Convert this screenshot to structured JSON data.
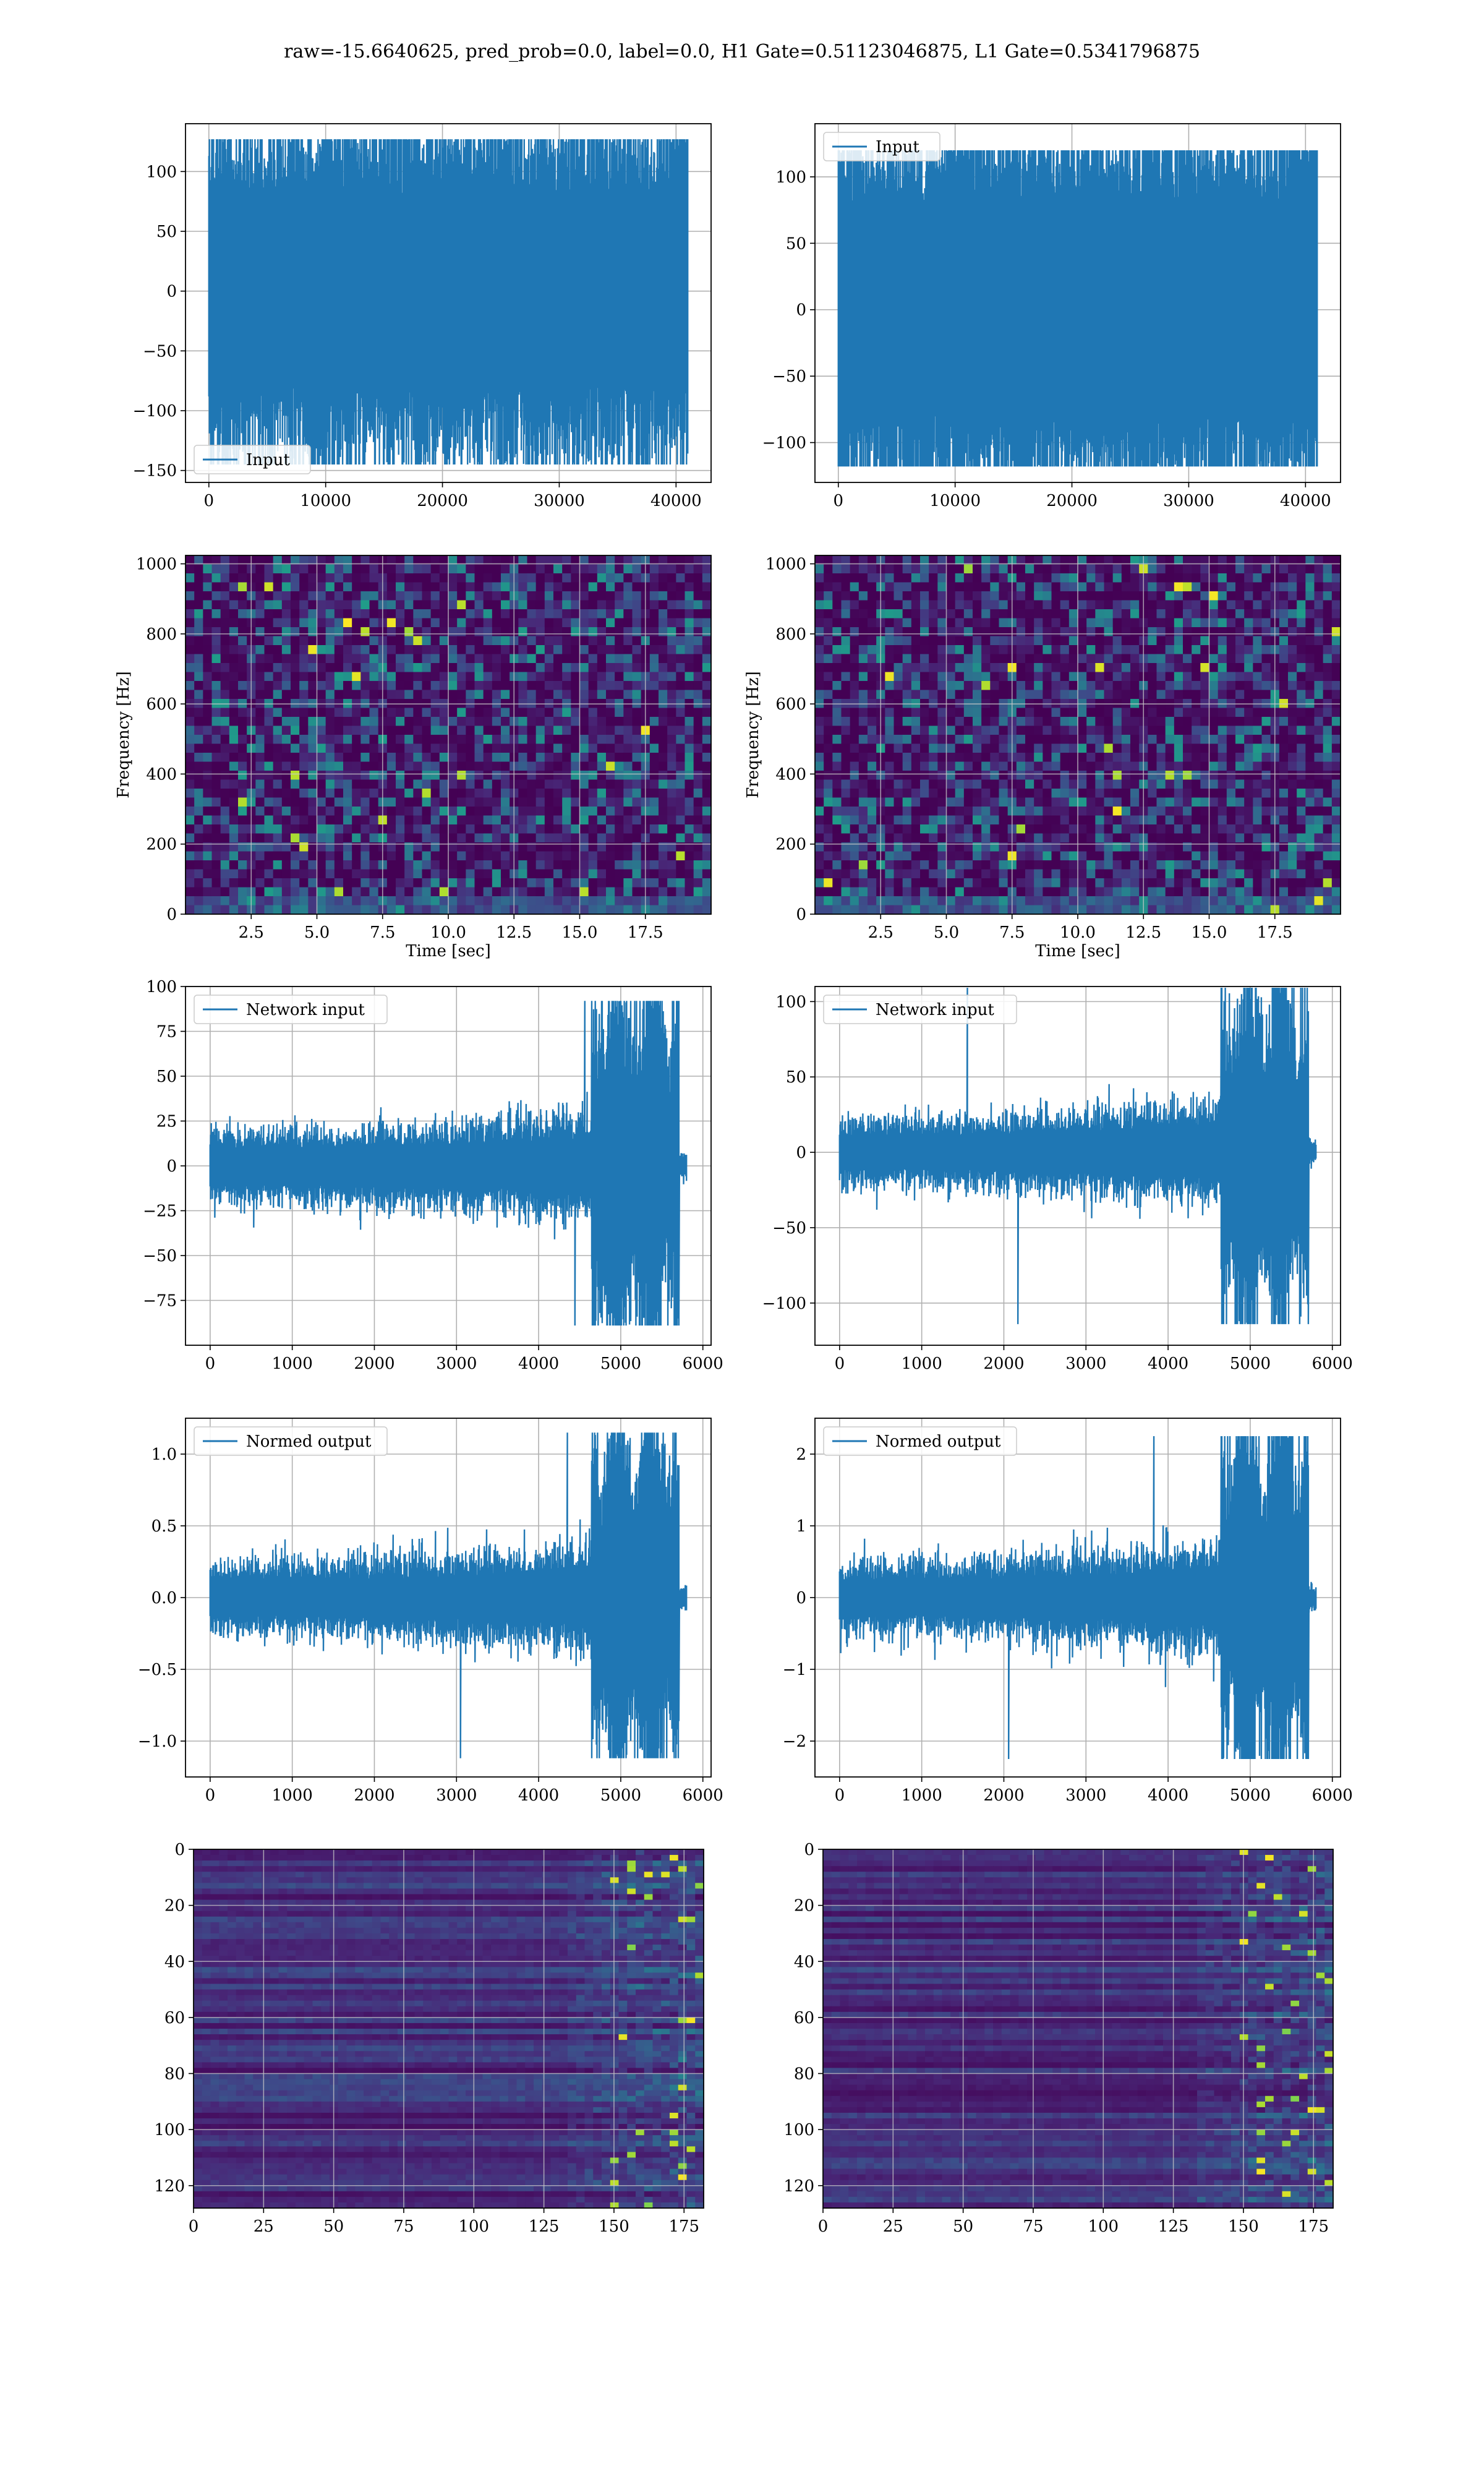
{
  "figure": {
    "suptitle": "raw=-15.6640625, pred_prob=0.0, label=0.0, H1 Gate=0.51123046875, L1 Gate=0.5341796875"
  },
  "colors": {
    "line": "#1f77b4",
    "grid": "#b0b0b0",
    "viridis_dark": "#440154",
    "viridis_mid": "#21918c",
    "viridis_bright": "#fde725"
  },
  "chart_data": [
    {
      "id": "h1-input",
      "type": "line",
      "panel": "row1-left",
      "series": [
        {
          "name": "Input",
          "kind": "noise",
          "n": 41000,
          "amplitude": 30,
          "peak": 127,
          "trough": -145
        }
      ],
      "legend": "lower left",
      "xlim": [
        -2000,
        43000
      ],
      "ylim": [
        -160,
        140
      ],
      "xticks": [
        0,
        10000,
        20000,
        30000,
        40000
      ],
      "yticks": [
        -150,
        -100,
        -50,
        0,
        50,
        100
      ],
      "xlabel": "",
      "ylabel": "",
      "grid": true
    },
    {
      "id": "l1-input",
      "type": "line",
      "panel": "row1-right",
      "series": [
        {
          "name": "Input",
          "kind": "noise",
          "n": 41000,
          "amplitude": 30,
          "peak": 120,
          "trough": -118
        }
      ],
      "legend": "upper left",
      "xlim": [
        -2000,
        43000
      ],
      "ylim": [
        -130,
        140
      ],
      "xticks": [
        0,
        10000,
        20000,
        30000,
        40000
      ],
      "yticks": [
        -100,
        -50,
        0,
        50,
        100
      ],
      "xlabel": "",
      "ylabel": "",
      "grid": true
    },
    {
      "id": "h1-spectrogram",
      "type": "heatmap",
      "panel": "row2-left",
      "colormap": "viridis",
      "xlim": [
        0,
        20
      ],
      "ylim": [
        0,
        1024
      ],
      "xticks": [
        2.5,
        5.0,
        7.5,
        10.0,
        12.5,
        15.0,
        17.5
      ],
      "yticks": [
        0,
        200,
        400,
        600,
        800,
        1000
      ],
      "xlabel": "Time [sec]",
      "ylabel": "Frequency [Hz]",
      "grid": true
    },
    {
      "id": "l1-spectrogram",
      "type": "heatmap",
      "panel": "row2-right",
      "colormap": "viridis",
      "xlim": [
        0,
        20
      ],
      "ylim": [
        0,
        1024
      ],
      "xticks": [
        2.5,
        5.0,
        7.5,
        10.0,
        12.5,
        15.0,
        17.5
      ],
      "yticks": [
        0,
        200,
        400,
        600,
        800,
        1000
      ],
      "xlabel": "Time [sec]",
      "ylabel": "Frequency [Hz]",
      "grid": true
    },
    {
      "id": "h1-network-input",
      "type": "line",
      "panel": "row3-left",
      "series": [
        {
          "name": "Network input",
          "kind": "burst",
          "n": 5800,
          "amplitude": 8,
          "peak": 92,
          "trough": -89
        }
      ],
      "legend": "upper left",
      "xlim": [
        -300,
        6100
      ],
      "ylim": [
        -100,
        100
      ],
      "xticks": [
        0,
        1000,
        2000,
        3000,
        4000,
        5000,
        6000
      ],
      "yticks": [
        -75,
        -50,
        -25,
        0,
        25,
        50,
        75,
        100
      ],
      "xlabel": "",
      "ylabel": "",
      "grid": true
    },
    {
      "id": "l1-network-input",
      "type": "line",
      "panel": "row3-right",
      "series": [
        {
          "name": "Network input",
          "kind": "burst",
          "n": 5800,
          "amplitude": 9,
          "peak": 114,
          "trough": -114
        }
      ],
      "legend": "upper left",
      "xlim": [
        -300,
        6100
      ],
      "ylim": [
        -128,
        110
      ],
      "xticks": [
        0,
        1000,
        2000,
        3000,
        4000,
        5000,
        6000
      ],
      "yticks": [
        -100,
        -50,
        0,
        50,
        100
      ],
      "xlabel": "",
      "ylabel": "",
      "grid": true
    },
    {
      "id": "h1-normed-output",
      "type": "line",
      "panel": "row4-left",
      "series": [
        {
          "name": "Normed output",
          "kind": "burst",
          "n": 5800,
          "amplitude": 0.1,
          "peak": 1.15,
          "trough": -1.12
        }
      ],
      "legend": "upper left",
      "xlim": [
        -300,
        6100
      ],
      "ylim": [
        -1.25,
        1.25
      ],
      "xticks": [
        0,
        1000,
        2000,
        3000,
        4000,
        5000,
        6000
      ],
      "yticks": [
        -1.0,
        -0.5,
        0.0,
        0.5,
        1.0
      ],
      "xlabel": "",
      "ylabel": "",
      "grid": true
    },
    {
      "id": "l1-normed-output",
      "type": "line",
      "panel": "row4-right",
      "series": [
        {
          "name": "Normed output",
          "kind": "burst",
          "n": 5800,
          "amplitude": 0.2,
          "peak": 2.25,
          "trough": -2.25
        }
      ],
      "legend": "upper left",
      "xlim": [
        -300,
        6100
      ],
      "ylim": [
        -2.5,
        2.5
      ],
      "xticks": [
        0,
        1000,
        2000,
        3000,
        4000,
        5000,
        6000
      ],
      "yticks": [
        -2,
        -1,
        0,
        1,
        2
      ],
      "xlabel": "",
      "ylabel": "",
      "grid": true
    },
    {
      "id": "h1-feature-map",
      "type": "heatmap",
      "panel": "row5-left",
      "colormap": "viridis",
      "rows": 128,
      "cols": 182,
      "xlim": [
        0,
        182
      ],
      "ylim": [
        128,
        0
      ],
      "xticks": [
        0,
        25,
        50,
        75,
        100,
        125,
        150,
        175
      ],
      "yticks": [
        0,
        20,
        40,
        60,
        80,
        100,
        120
      ],
      "xlabel": "",
      "ylabel": "",
      "grid": true
    },
    {
      "id": "l1-feature-map",
      "type": "heatmap",
      "panel": "row5-right",
      "colormap": "viridis",
      "rows": 128,
      "cols": 182,
      "xlim": [
        0,
        182
      ],
      "ylim": [
        128,
        0
      ],
      "xticks": [
        0,
        25,
        50,
        75,
        100,
        125,
        150,
        175
      ],
      "yticks": [
        0,
        20,
        40,
        60,
        80,
        100,
        120
      ],
      "xlabel": "",
      "ylabel": "",
      "grid": true
    }
  ]
}
